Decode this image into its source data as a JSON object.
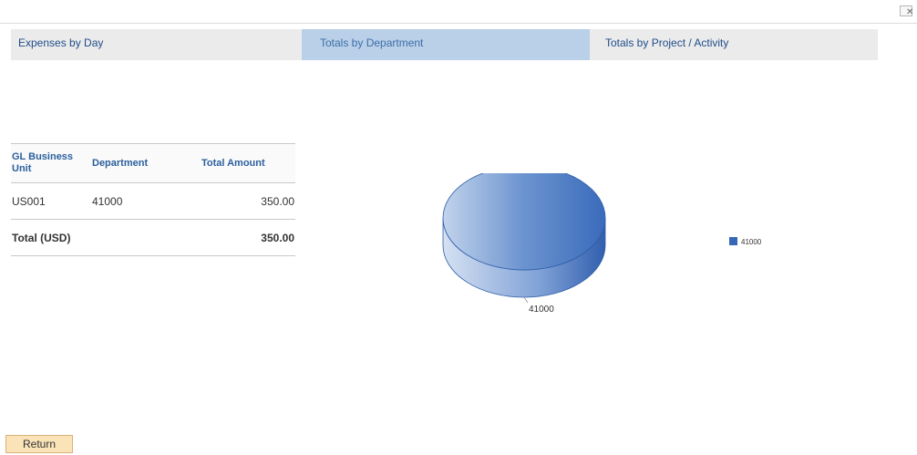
{
  "window": {
    "close_glyph": "✕"
  },
  "tabs": [
    {
      "label": "Expenses by Day",
      "active": false
    },
    {
      "label": "Totals by Department",
      "active": true
    },
    {
      "label": "Totals by Project / Activity",
      "active": false
    }
  ],
  "grid": {
    "headers": {
      "business_unit": "GL Business Unit",
      "department": "Department",
      "total_amount": "Total Amount"
    },
    "rows": [
      {
        "business_unit": "US001",
        "department": "41000",
        "total_amount": "350.00"
      }
    ],
    "total": {
      "label": "Total (USD)",
      "amount": "350.00"
    }
  },
  "chart_data": {
    "type": "pie",
    "categories": [
      "41000"
    ],
    "values": [
      350.0
    ],
    "slice_labels": [
      "41000"
    ],
    "legend": [
      "41000"
    ],
    "legend_placement": "right",
    "colors": [
      "#3568b7"
    ],
    "three_d": true
  },
  "actions": {
    "return_label": "Return"
  },
  "colors": {
    "accent": "#204d8a",
    "active_tab": "#b9d0e8",
    "tab_bar": "#ebebeb",
    "button_bg": "#fbe3b8"
  }
}
